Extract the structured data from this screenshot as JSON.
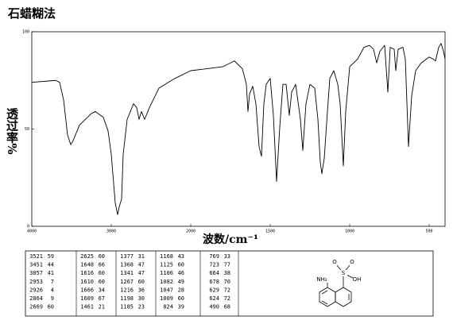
{
  "chart_data": {
    "type": "line",
    "title": "石蜡糊法",
    "y_label": "透过率%",
    "x_label": "波数/cm⁻¹",
    "x": [
      4000,
      3700,
      3650,
      3600,
      3550,
      3510,
      3480,
      3400,
      3250,
      3200,
      3100,
      3040,
      3000,
      2950,
      2920,
      2900,
      2870,
      2850,
      2800,
      2720,
      2680,
      2650,
      2620,
      2580,
      2520,
      2400,
      2200,
      2000,
      1800,
      1725,
      1675,
      1650,
      1640,
      1630,
      1610,
      1590,
      1570,
      1555,
      1540,
      1525,
      1500,
      1480,
      1460,
      1440,
      1420,
      1400,
      1380,
      1365,
      1340,
      1310,
      1295,
      1275,
      1250,
      1220,
      1200,
      1185,
      1175,
      1160,
      1140,
      1125,
      1100,
      1075,
      1060,
      1040,
      1025,
      1000,
      950,
      910,
      875,
      850,
      830,
      810,
      780,
      760,
      745,
      720,
      710,
      695,
      665,
      650,
      630,
      610,
      585,
      550,
      500,
      475,
      460,
      440,
      425,
      410,
      400
    ],
    "series": [
      {
        "color": "#000000",
        "values": [
          74,
          75,
          74,
          65,
          47,
          42,
          44,
          52,
          58,
          59,
          56,
          49,
          37,
          12,
          6,
          10,
          14,
          37,
          55,
          63,
          61,
          55,
          59,
          55,
          61,
          71,
          76,
          80,
          82,
          85,
          81,
          73,
          59,
          68,
          72,
          63,
          41,
          36,
          63,
          73,
          76,
          57,
          23,
          51,
          73,
          73,
          57,
          69,
          73,
          55,
          39,
          63,
          73,
          71,
          55,
          33,
          27,
          35,
          59,
          76,
          80,
          73,
          63,
          31,
          59,
          82,
          86,
          92,
          93,
          91,
          84,
          90,
          93,
          69,
          92,
          91,
          80,
          91,
          92,
          86,
          41,
          67,
          80,
          84,
          87,
          86,
          85,
          92,
          94,
          90,
          86
        ]
      }
    ],
    "xlim": [
      4000,
      400
    ],
    "ylim": [
      0,
      100
    ],
    "xticks": [
      4000,
      3000,
      2000,
      1500,
      1000,
      500
    ],
    "yticks": [
      0,
      50,
      100
    ]
  },
  "peak_table": {
    "rows": [
      [
        3521,
        59,
        2625,
        60,
        1377,
        31,
        1168,
        43,
        769,
        33
      ],
      [
        3451,
        44,
        1648,
        66,
        1368,
        47,
        1125,
        60,
        723,
        77
      ],
      [
        3057,
        41,
        1616,
        60,
        1341,
        47,
        1106,
        46,
        664,
        38
      ],
      [
        2953,
        7,
        1610,
        60,
        1267,
        60,
        1082,
        49,
        678,
        70
      ],
      [
        2926,
        4,
        1666,
        34,
        1216,
        36,
        1047,
        28,
        629,
        72
      ],
      [
        2864,
        9,
        1609,
        67,
        1198,
        30,
        1009,
        60,
        624,
        72
      ],
      [
        2669,
        60,
        1461,
        21,
        1185,
        23,
        824,
        39,
        490,
        68
      ]
    ]
  },
  "structure": {
    "labels": [
      "O",
      "O",
      "S",
      "NH₂",
      "OH"
    ]
  }
}
